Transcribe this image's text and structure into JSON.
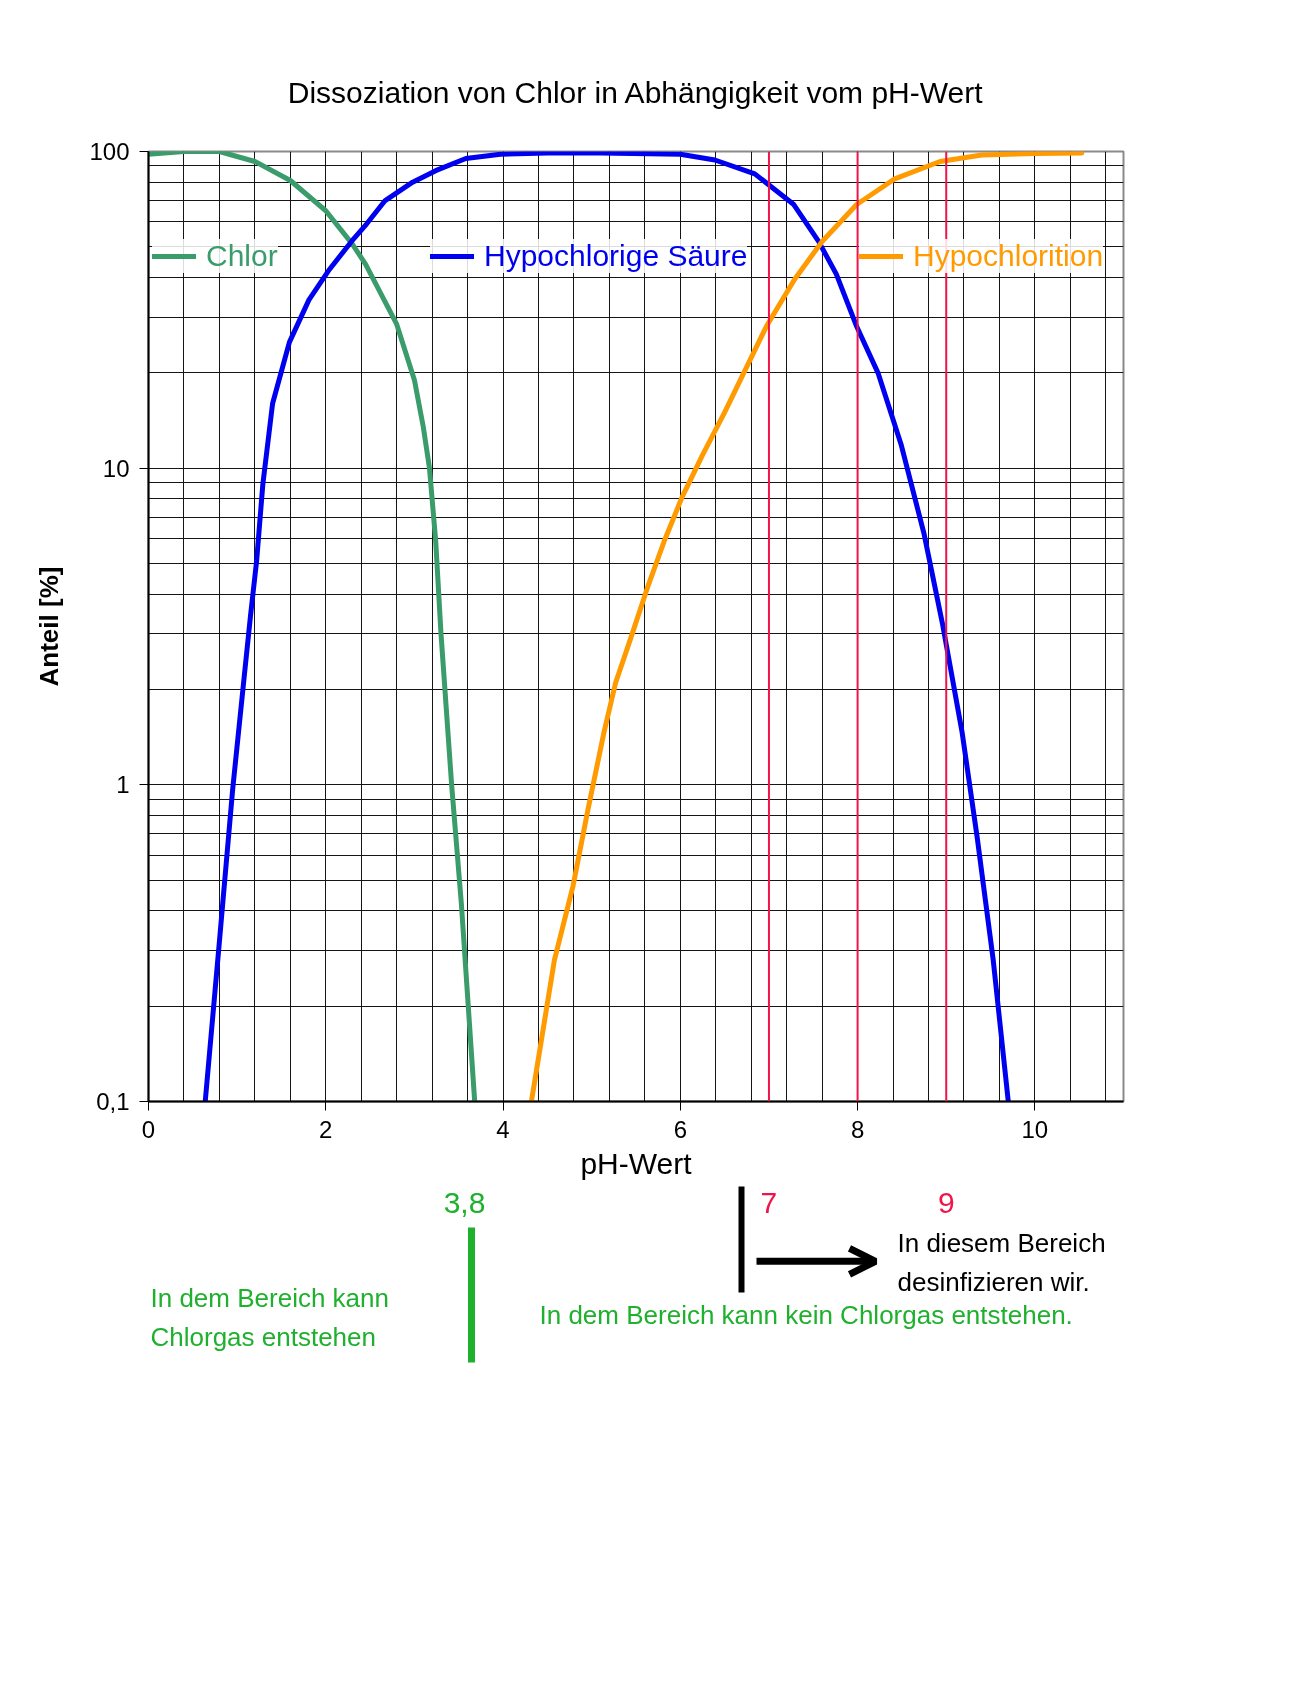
{
  "chart_data": {
    "type": "line",
    "title": "Dissoziation von Chlor in Abhängigkeit vom pH-Wert",
    "xlabel": "pH-Wert",
    "ylabel": "Anteil [%]",
    "xlim": [
      0,
      11
    ],
    "xticks": [
      0,
      2,
      4,
      6,
      8,
      10
    ],
    "ylim": [
      0.1,
      100
    ],
    "yticks": [
      {
        "value": 0.1,
        "label": "0,1"
      },
      1,
      10,
      100
    ],
    "log": "y",
    "grid": true,
    "legend": "top",
    "series": [
      {
        "name": "Chlor",
        "color": "#3a9b6b",
        "x": [
          0,
          0.4,
          0.8,
          1.2,
          1.6,
          2.0,
          2.3,
          2.45,
          2.8,
          3.0,
          3.1,
          3.17,
          3.24,
          3.3,
          3.42,
          3.53,
          3.68
        ],
        "values": [
          98,
          100,
          100,
          93,
          81,
          65,
          51,
          44,
          28.5,
          19,
          13.5,
          10,
          5.9,
          3.0,
          1.0,
          0.42,
          0.1
        ]
      },
      {
        "name": "Hypochlorige Säure",
        "color": "#0000f0",
        "x": [
          0.64,
          0.8,
          0.95,
          1.08,
          1.15,
          1.22,
          1.29,
          1.4,
          1.59,
          1.81,
          2.03,
          2.29,
          2.46,
          2.67,
          2.98,
          3.24,
          3.58,
          3.97,
          4.5,
          5.1,
          6.0,
          6.39,
          6.84,
          7.28,
          7.56,
          7.76,
          7.99,
          8.23,
          8.49,
          8.75,
          8.96,
          9.18,
          9.35,
          9.53,
          9.7
        ],
        "values": [
          0.1,
          0.32,
          0.97,
          2.2,
          3.4,
          5.1,
          8.9,
          16,
          25,
          34,
          42,
          52,
          59,
          70,
          80,
          87,
          95,
          98,
          99,
          99,
          98,
          94,
          85,
          68,
          52,
          41,
          28,
          20,
          11.9,
          6.2,
          3.2,
          1.46,
          0.68,
          0.28,
          0.1
        ]
      },
      {
        "name": "Hypochlorition",
        "color": "#ff9a00",
        "x": [
          4.32,
          4.58,
          4.79,
          4.96,
          5.14,
          5.27,
          5.44,
          5.63,
          5.82,
          6.02,
          6.25,
          6.5,
          6.97,
          7.29,
          7.6,
          7.99,
          8.42,
          8.93,
          9.4,
          10.0,
          10.53
        ],
        "values": [
          0.1,
          0.28,
          0.48,
          0.84,
          1.47,
          2.1,
          2.9,
          4.2,
          5.9,
          8.1,
          11,
          15,
          28,
          39.5,
          52,
          68,
          82,
          93,
          97.5,
          98.5,
          99
        ]
      }
    ],
    "ref_lines": [
      {
        "axis": "x",
        "value": 7,
        "label": "7",
        "color": "#f0144b"
      },
      {
        "axis": "x",
        "value": 8,
        "color": "#f0144b"
      },
      {
        "axis": "x",
        "value": 9,
        "label": "9",
        "color": "#f0144b"
      }
    ],
    "annotations": [
      "3,8",
      "In diesem Bereich desinfizieren wir.",
      "In dem Bereich kann Chlorgas entstehen",
      "In dem Bereich kann kein Chlorgas entstehen."
    ]
  }
}
